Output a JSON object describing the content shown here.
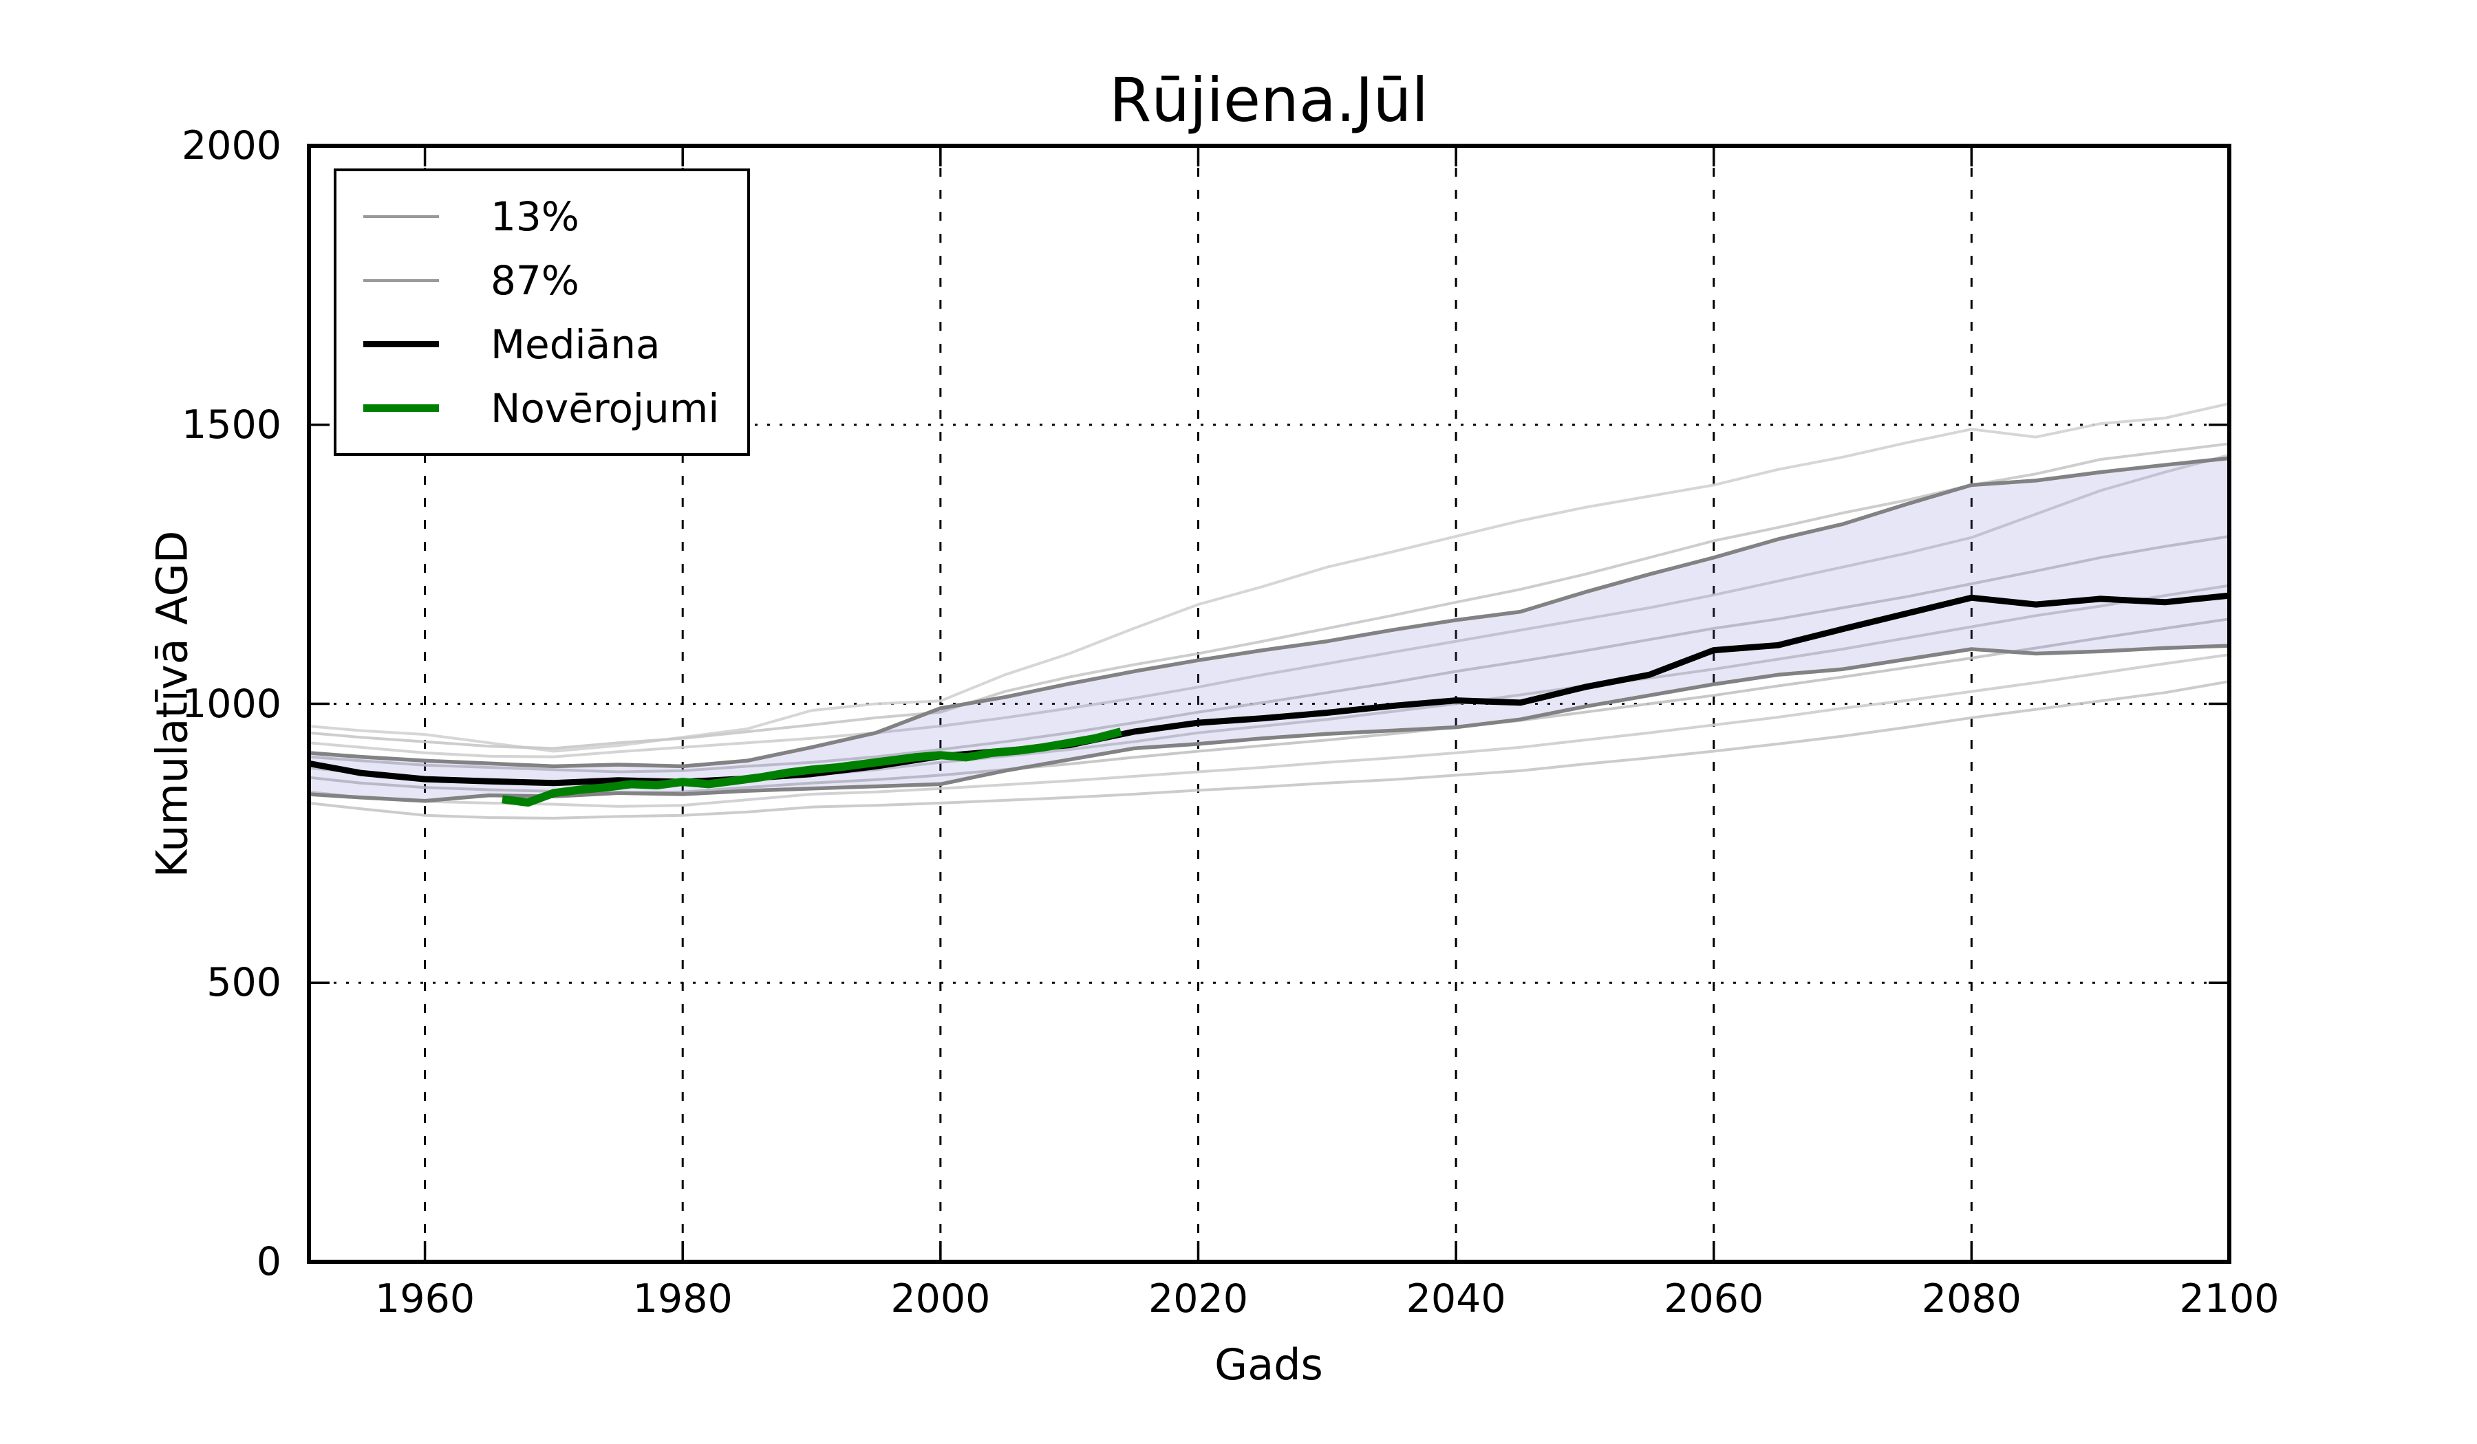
{
  "title": "Rūjiena.Jūl",
  "legend": {
    "items": [
      {
        "label": "13%",
        "color": "#999999",
        "thickness": 4
      },
      {
        "label": "87%",
        "color": "#999999",
        "thickness": 4
      },
      {
        "label": "Mediāna",
        "color": "#000000",
        "thickness": 9
      },
      {
        "label": "Novērojumi",
        "color": "#008000",
        "thickness": 11
      }
    ]
  },
  "chart_data": {
    "type": "line",
    "title": "Rūjiena.Jūl",
    "xlabel": "Gads",
    "ylabel": "Kumulatīvā AGD",
    "xlim": [
      1951,
      2100
    ],
    "ylim": [
      0,
      2000
    ],
    "x_ticks": [
      1960,
      1980,
      2000,
      2020,
      2040,
      2060,
      2080,
      2100
    ],
    "y_ticks": [
      0,
      500,
      1000,
      1500,
      2000
    ],
    "grid": {
      "vertical_style": "dashed",
      "horizontal_style": "dotted",
      "color": "#000000"
    },
    "band": {
      "upper_series": "87%",
      "lower_series": "13%",
      "fill_color": "rgba(105,105,205,0.17)"
    },
    "colors": {
      "median": "#000000",
      "percentile": "#828282",
      "ensemble": "#c9c9c9",
      "observations": "#008000"
    },
    "x": [
      1951,
      1955,
      1960,
      1965,
      1970,
      1975,
      1980,
      1985,
      1990,
      1995,
      2000,
      2005,
      2010,
      2015,
      2020,
      2025,
      2030,
      2035,
      2040,
      2045,
      2050,
      2055,
      2060,
      2065,
      2070,
      2075,
      2080,
      2085,
      2090,
      2095,
      2100
    ],
    "series": [
      {
        "name": "ensemble-1",
        "role": "ensemble",
        "color": "#d2d2d2",
        "width": 4,
        "values": [
          960,
          952,
          945,
          930,
          915,
          925,
          940,
          955,
          988,
          1000,
          1005,
          1052,
          1090,
          1135,
          1178,
          1210,
          1245,
          1272,
          1300,
          1328,
          1352,
          1372,
          1392,
          1420,
          1442,
          1468,
          1492,
          1478,
          1502,
          1512,
          1538
        ]
      },
      {
        "name": "ensemble-2",
        "role": "ensemble",
        "color": "#c8c8c8",
        "width": 4,
        "values": [
          948,
          940,
          932,
          924,
          920,
          930,
          938,
          950,
          962,
          975,
          985,
          1022,
          1048,
          1070,
          1090,
          1112,
          1135,
          1158,
          1182,
          1205,
          1232,
          1262,
          1292,
          1316,
          1342,
          1365,
          1392,
          1412,
          1438,
          1452,
          1466
        ]
      },
      {
        "name": "ensemble-3",
        "role": "ensemble",
        "color": "#cfcfcf",
        "width": 4,
        "values": [
          930,
          922,
          912,
          906,
          905,
          914,
          922,
          930,
          938,
          948,
          960,
          975,
          992,
          1010,
          1030,
          1052,
          1072,
          1092,
          1112,
          1132,
          1152,
          1172,
          1195,
          1220,
          1245,
          1270,
          1298,
          1340,
          1382,
          1415,
          1446
        ]
      },
      {
        "name": "ensemble-4",
        "role": "ensemble",
        "color": "#c4c4c4",
        "width": 4,
        "values": [
          905,
          898,
          890,
          886,
          882,
          878,
          880,
          888,
          895,
          905,
          918,
          932,
          948,
          966,
          985,
          1002,
          1020,
          1038,
          1058,
          1076,
          1095,
          1115,
          1135,
          1152,
          1172,
          1192,
          1215,
          1238,
          1262,
          1282,
          1300
        ]
      },
      {
        "name": "ensemble-5",
        "role": "ensemble",
        "color": "#cacaca",
        "width": 4,
        "values": [
          885,
          876,
          868,
          864,
          860,
          856,
          858,
          864,
          872,
          882,
          895,
          906,
          918,
          932,
          948,
          960,
          972,
          986,
          1000,
          1016,
          1032,
          1046,
          1062,
          1080,
          1098,
          1118,
          1138,
          1158,
          1175,
          1194,
          1212
        ]
      },
      {
        "name": "ensemble-6",
        "role": "ensemble",
        "color": "#c2c2c2",
        "width": 4,
        "values": [
          868,
          858,
          850,
          846,
          843,
          840,
          842,
          850,
          858,
          864,
          872,
          882,
          892,
          904,
          915,
          925,
          935,
          946,
          958,
          970,
          985,
          1000,
          1015,
          1032,
          1048,
          1065,
          1082,
          1100,
          1118,
          1135,
          1152
        ]
      },
      {
        "name": "ensemble-7",
        "role": "ensemble",
        "color": "#cdcdcd",
        "width": 4,
        "values": [
          842,
          832,
          825,
          822,
          820,
          816,
          818,
          828,
          838,
          842,
          848,
          855,
          862,
          870,
          878,
          886,
          895,
          903,
          912,
          922,
          935,
          948,
          962,
          976,
          992,
          1006,
          1022,
          1038,
          1055,
          1072,
          1088
        ]
      },
      {
        "name": "ensemble-8",
        "role": "ensemble",
        "color": "#c6c6c6",
        "width": 4,
        "values": [
          822,
          812,
          800,
          796,
          795,
          798,
          800,
          806,
          815,
          818,
          822,
          827,
          832,
          838,
          845,
          851,
          858,
          864,
          872,
          880,
          892,
          903,
          915,
          928,
          942,
          958,
          975,
          990,
          1005,
          1020,
          1040
        ]
      },
      {
        "name": "13%",
        "role": "percentile-lower",
        "color": "#828282",
        "width": 5.5,
        "values": [
          838,
          832,
          826,
          836,
          834,
          840,
          838,
          844,
          848,
          852,
          856,
          880,
          900,
          920,
          928,
          938,
          946,
          952,
          958,
          972,
          995,
          1015,
          1035,
          1052,
          1062,
          1080,
          1098,
          1090,
          1094,
          1100,
          1104
        ]
      },
      {
        "name": "87%",
        "role": "percentile-upper",
        "color": "#828282",
        "width": 5.5,
        "values": [
          912,
          905,
          898,
          893,
          888,
          891,
          888,
          898,
          922,
          948,
          992,
          1012,
          1036,
          1058,
          1078,
          1096,
          1112,
          1132,
          1150,
          1165,
          1200,
          1232,
          1262,
          1295,
          1322,
          1358,
          1392,
          1400,
          1415,
          1428,
          1440
        ]
      },
      {
        "name": "Mediāna",
        "role": "median",
        "color": "#000000",
        "width": 9,
        "values": [
          893,
          876,
          865,
          861,
          858,
          863,
          860,
          866,
          874,
          888,
          906,
          916,
          926,
          950,
          966,
          974,
          984,
          996,
          1006,
          1002,
          1030,
          1052,
          1096,
          1105,
          1134,
          1162,
          1190,
          1178,
          1188,
          1182,
          1194
        ]
      }
    ],
    "observations": {
      "name": "Novērojumi",
      "color": "#008000",
      "width": 12,
      "x": [
        1966,
        1968,
        1970,
        1972,
        1974,
        1976,
        1978,
        1980,
        1982,
        1984,
        1986,
        1988,
        1990,
        1992,
        1994,
        1996,
        1998,
        2000,
        2002,
        2004,
        2006,
        2008,
        2010,
        2012,
        2014
      ],
      "values": [
        829,
        823,
        840,
        846,
        850,
        856,
        854,
        860,
        856,
        862,
        868,
        876,
        882,
        886,
        892,
        898,
        904,
        908,
        904,
        912,
        916,
        922,
        930,
        938,
        950
      ]
    }
  }
}
